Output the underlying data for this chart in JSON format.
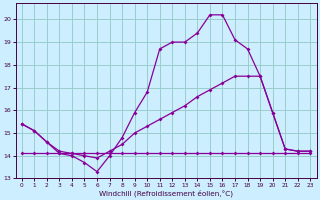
{
  "xlabel": "Windchill (Refroidissement éolien,°C)",
  "xlim": [
    -0.5,
    23.5
  ],
  "ylim": [
    13,
    20.7
  ],
  "yticks": [
    13,
    14,
    15,
    16,
    17,
    18,
    19,
    20
  ],
  "xticks": [
    0,
    1,
    2,
    3,
    4,
    5,
    6,
    7,
    8,
    9,
    10,
    11,
    12,
    13,
    14,
    15,
    16,
    17,
    18,
    19,
    20,
    21,
    22,
    23
  ],
  "bg_color": "#cceeff",
  "grid_color": "#99cccc",
  "line_color": "#880099",
  "line_top_x": [
    0,
    1,
    2,
    3,
    4,
    5,
    6,
    7,
    8,
    9,
    10,
    11,
    12,
    13,
    14,
    15,
    16,
    17,
    18,
    19,
    20,
    21,
    22,
    23
  ],
  "line_top_y": [
    15.4,
    15.1,
    14.6,
    14.1,
    14.0,
    13.7,
    13.3,
    14.0,
    14.8,
    15.9,
    16.8,
    18.7,
    19.0,
    19.0,
    19.4,
    20.2,
    20.2,
    19.1,
    18.7,
    17.5,
    15.9,
    14.3,
    14.2,
    14.2
  ],
  "line_mid_x": [
    0,
    1,
    2,
    3,
    4,
    5,
    6,
    7,
    8,
    9,
    10,
    11,
    12,
    13,
    14,
    15,
    16,
    17,
    18,
    19,
    20,
    21,
    22,
    23
  ],
  "line_mid_y": [
    15.4,
    15.1,
    14.6,
    14.2,
    14.1,
    14.0,
    13.9,
    14.2,
    14.5,
    15.0,
    15.3,
    15.6,
    15.9,
    16.2,
    16.6,
    16.9,
    17.2,
    17.5,
    17.5,
    17.5,
    15.9,
    14.3,
    14.2,
    14.2
  ],
  "line_bot_x": [
    0,
    1,
    2,
    3,
    4,
    5,
    6,
    7,
    8,
    9,
    10,
    11,
    12,
    13,
    14,
    15,
    16,
    17,
    18,
    19,
    20,
    21,
    22,
    23
  ],
  "line_bot_y": [
    14.1,
    14.1,
    14.1,
    14.1,
    14.1,
    14.1,
    14.1,
    14.1,
    14.1,
    14.1,
    14.1,
    14.1,
    14.1,
    14.1,
    14.1,
    14.1,
    14.1,
    14.1,
    14.1,
    14.1,
    14.1,
    14.1,
    14.1,
    14.1
  ]
}
